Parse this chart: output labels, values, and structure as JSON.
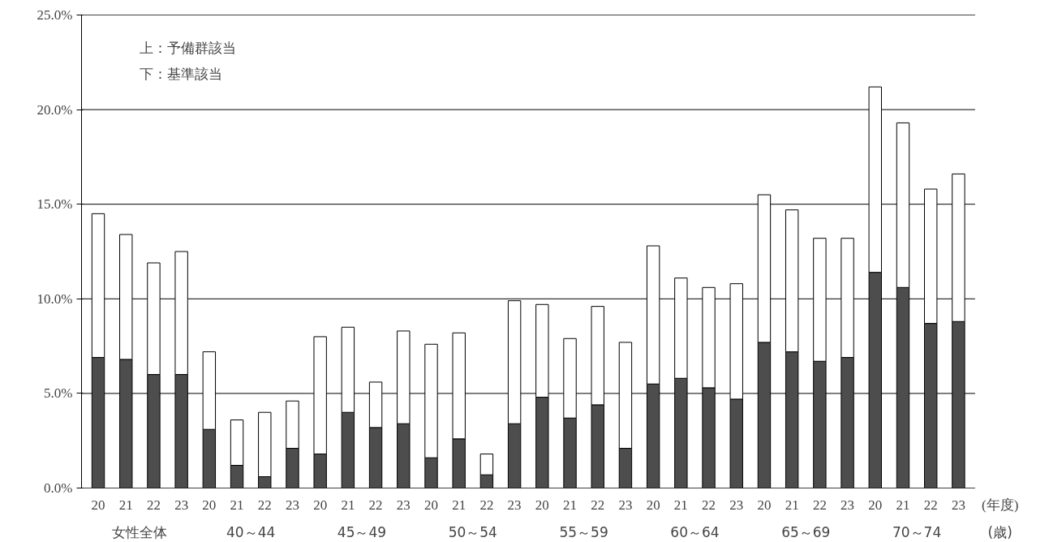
{
  "chart_data": {
    "type": "bar",
    "stacked": true,
    "categories": [
      "20",
      "21",
      "22",
      "23",
      "20",
      "21",
      "22",
      "23",
      "20",
      "21",
      "22",
      "23",
      "20",
      "21",
      "22",
      "23",
      "20",
      "21",
      "22",
      "23",
      "20",
      "21",
      "22",
      "23",
      "20",
      "21",
      "22",
      "23",
      "20",
      "21",
      "22",
      "23"
    ],
    "xlabel": "(年度)",
    "series": [
      {
        "color": "#4d4d4d",
        "values": [
          6.9,
          6.8,
          6.0,
          6.0,
          3.1,
          1.2,
          0.6,
          2.1,
          1.8,
          4.0,
          3.2,
          3.4,
          1.6,
          2.6,
          0.7,
          3.4,
          4.8,
          3.7,
          4.4,
          2.1,
          5.5,
          5.8,
          5.3,
          4.7,
          7.7,
          7.2,
          6.7,
          6.9,
          11.4,
          10.6,
          8.7,
          8.8
        ]
      },
      {
        "color": "#ffffff",
        "values": [
          7.6,
          6.6,
          5.9,
          6.5,
          4.1,
          2.4,
          3.4,
          2.5,
          6.2,
          4.5,
          2.4,
          4.9,
          6.0,
          5.6,
          1.1,
          6.5,
          4.9,
          4.2,
          5.2,
          5.6,
          7.3,
          5.3,
          5.3,
          6.1,
          7.8,
          7.5,
          6.5,
          6.3,
          9.8,
          8.7,
          7.1,
          7.8
        ]
      }
    ],
    "annotations": [
      "上：予備群該当",
      "下：基準該当",
      "女性全体",
      "40～44",
      "45～49",
      "50～54",
      "55～59",
      "60～64",
      "65～69",
      "70～74",
      "(歳)"
    ],
    "ylim": [
      0,
      25
    ],
    "yticks": [
      {
        "value": 0,
        "label": "0.0%"
      },
      {
        "value": 5,
        "label": "5.0%"
      },
      {
        "value": 10,
        "label": "10.0%"
      },
      {
        "value": 15,
        "label": "15.0%"
      },
      {
        "value": 20,
        "label": "20.0%"
      },
      {
        "value": 25,
        "label": "25.0%"
      }
    ],
    "grid": "y"
  }
}
